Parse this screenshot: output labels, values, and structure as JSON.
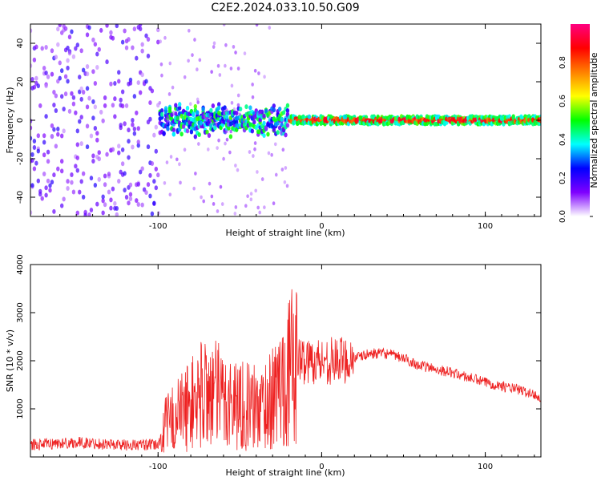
{
  "title": "C2E2.2024.033.10.50.G09",
  "colorbar": {
    "label": "Normalized spectral amplitude",
    "ticks": [
      "0.0",
      "0.2",
      "0.4",
      "0.6",
      "0.8"
    ],
    "tick_values": [
      0.0,
      0.2,
      0.4,
      0.6,
      0.8
    ],
    "colors": [
      "#ffffff",
      "#7f00ff",
      "#0000ff",
      "#00ffff",
      "#00ff00",
      "#ffff00",
      "#ff8000",
      "#ff0000",
      "#ff0080"
    ]
  },
  "chart_data": [
    {
      "type": "heatmap",
      "title": "",
      "xlabel": "Height of straight line (km)",
      "ylabel": "Frequency (Hz)",
      "xlim": [
        -178,
        134
      ],
      "ylim": [
        -50,
        50
      ],
      "xticks": [
        -100,
        0,
        100
      ],
      "xtick_labels": [
        "-100",
        "0",
        "100"
      ],
      "yticks": [
        -40,
        -20,
        0,
        20,
        40
      ],
      "ytick_labels": [
        "-40",
        "-20",
        "0",
        "20",
        "40"
      ],
      "colorscale_range": [
        0,
        1
      ],
      "description_bands": [
        {
          "x_range": [
            -178,
            -100
          ],
          "freq_spread": 50,
          "amplitude": 0.05
        },
        {
          "x_range": [
            -100,
            -20
          ],
          "freq_spread": 6,
          "amplitude": 0.35
        },
        {
          "x_range": [
            -20,
            134
          ],
          "freq_spread": 2,
          "amplitude": 0.85
        }
      ]
    },
    {
      "type": "line",
      "title": "",
      "xlabel": "Height of straight line (km)",
      "ylabel": "SNR (10 * v/v)",
      "xlim": [
        -178,
        134
      ],
      "ylim": [
        0,
        4000
      ],
      "xticks": [
        -100,
        0,
        100
      ],
      "xtick_labels": [
        "-100",
        "0",
        "100"
      ],
      "yticks": [
        1000,
        2000,
        3000,
        4000
      ],
      "ytick_labels": [
        "1000",
        "2000",
        "3000",
        "4000"
      ],
      "series": [
        {
          "color": "#ee2222",
          "envelope": {
            "x": [
              -178,
              -150,
              -120,
              -100,
              -95,
              -80,
              -70,
              -60,
              -50,
              -40,
              -30,
              -25,
              -20,
              -15,
              -10,
              0,
              10,
              20,
              30,
              40,
              50,
              60,
              80,
              100,
              120,
              134
            ],
            "y": [
              250,
              300,
              250,
              250,
              700,
              1100,
              1400,
              1200,
              1100,
              1000,
              1200,
              1500,
              1800,
              2000,
              2000,
              2000,
              2000,
              2050,
              2150,
              2150,
              2050,
              1900,
              1750,
              1550,
              1400,
              1250
            ]
          }
        }
      ]
    }
  ]
}
